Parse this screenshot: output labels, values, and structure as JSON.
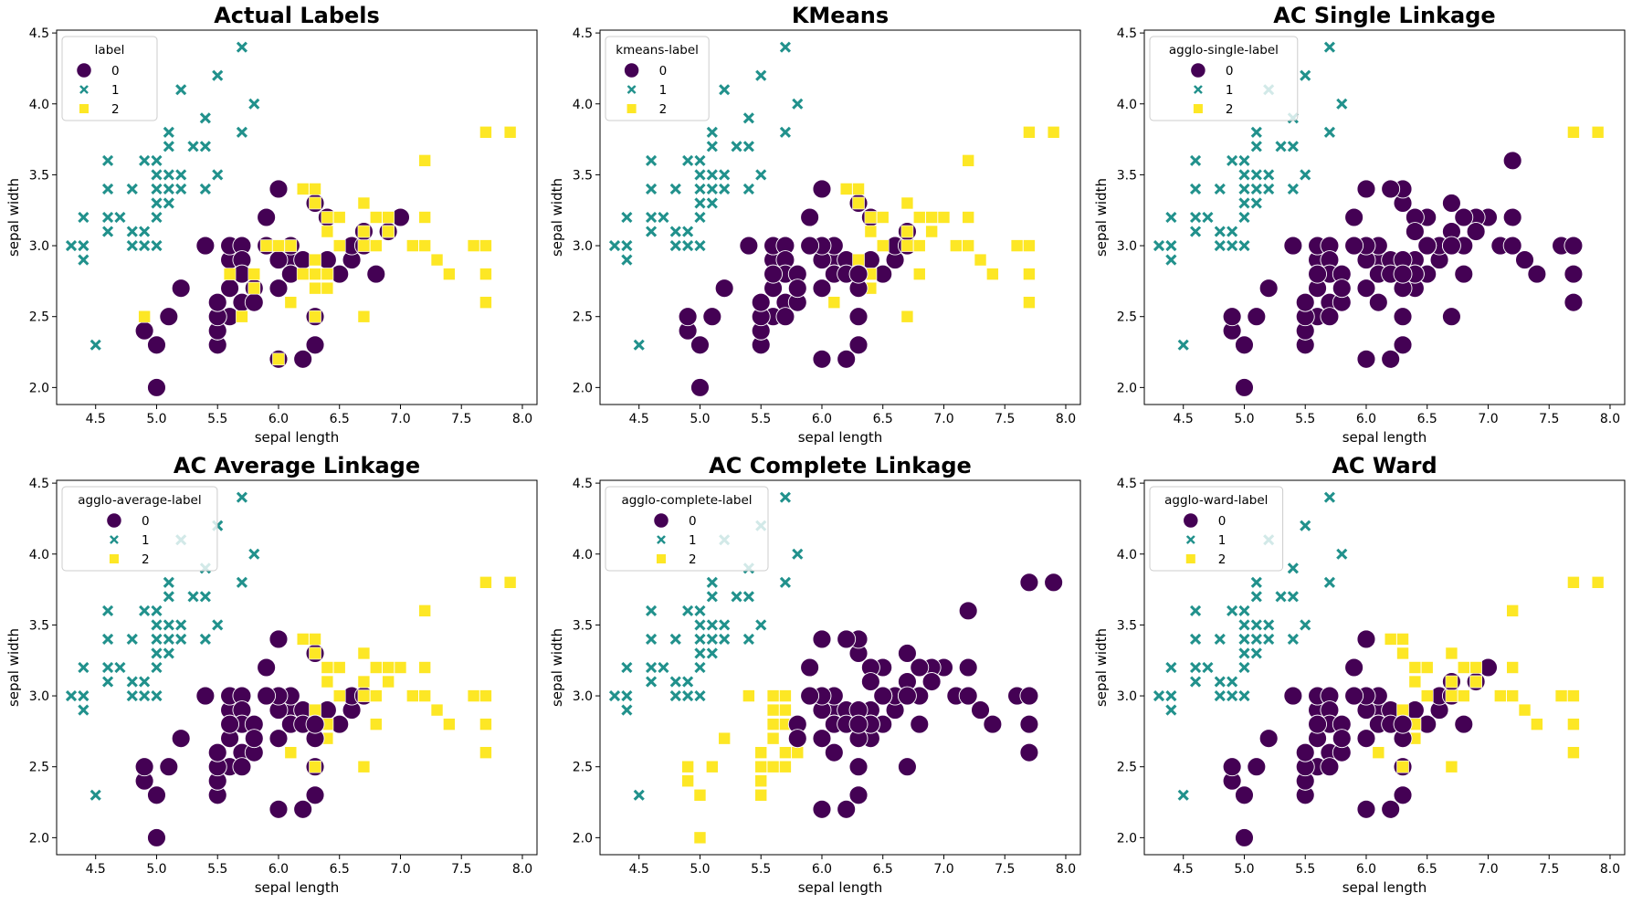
{
  "figure": {
    "layout": "2x3 grid",
    "palette": {
      "0": "#440154",
      "1": "#21918c",
      "2": "#fde725"
    },
    "markers": {
      "0": "circle",
      "1": "x",
      "2": "square"
    }
  },
  "shared": {
    "xlabel": "sepal length",
    "ylabel": "sepal width",
    "xlim": [
      4.18,
      8.12
    ],
    "ylim": [
      1.88,
      4.52
    ],
    "xticks": [
      "4.5",
      "5.0",
      "5.5",
      "6.0",
      "6.5",
      "7.0",
      "7.5",
      "8.0"
    ],
    "yticks": [
      "2.0",
      "2.5",
      "3.0",
      "3.5",
      "4.0",
      "4.5"
    ],
    "classes": [
      "0",
      "1",
      "2"
    ],
    "points": [
      [
        5.1,
        3.5
      ],
      [
        4.9,
        3.0
      ],
      [
        4.7,
        3.2
      ],
      [
        4.6,
        3.1
      ],
      [
        5.0,
        3.6
      ],
      [
        5.4,
        3.9
      ],
      [
        4.6,
        3.4
      ],
      [
        5.0,
        3.4
      ],
      [
        4.4,
        2.9
      ],
      [
        4.9,
        3.1
      ],
      [
        5.4,
        3.7
      ],
      [
        4.8,
        3.4
      ],
      [
        4.8,
        3.0
      ],
      [
        4.3,
        3.0
      ],
      [
        5.8,
        4.0
      ],
      [
        5.7,
        4.4
      ],
      [
        5.4,
        3.9
      ],
      [
        5.1,
        3.5
      ],
      [
        5.7,
        3.8
      ],
      [
        5.1,
        3.8
      ],
      [
        5.4,
        3.4
      ],
      [
        5.1,
        3.7
      ],
      [
        4.6,
        3.6
      ],
      [
        5.1,
        3.3
      ],
      [
        4.8,
        3.4
      ],
      [
        5.0,
        3.0
      ],
      [
        5.0,
        3.4
      ],
      [
        5.2,
        3.5
      ],
      [
        5.2,
        3.4
      ],
      [
        4.7,
        3.2
      ],
      [
        4.8,
        3.1
      ],
      [
        5.4,
        3.4
      ],
      [
        5.2,
        4.1
      ],
      [
        5.5,
        4.2
      ],
      [
        4.9,
        3.1
      ],
      [
        5.0,
        3.2
      ],
      [
        5.5,
        3.5
      ],
      [
        4.9,
        3.6
      ],
      [
        4.4,
        3.0
      ],
      [
        5.1,
        3.4
      ],
      [
        5.0,
        3.5
      ],
      [
        4.5,
        2.3
      ],
      [
        4.4,
        3.2
      ],
      [
        5.0,
        3.5
      ],
      [
        5.1,
        3.8
      ],
      [
        4.8,
        3.0
      ],
      [
        5.1,
        3.8
      ],
      [
        4.6,
        3.2
      ],
      [
        5.3,
        3.7
      ],
      [
        5.0,
        3.3
      ],
      [
        7.0,
        3.2
      ],
      [
        6.4,
        3.2
      ],
      [
        6.9,
        3.1
      ],
      [
        5.5,
        2.3
      ],
      [
        6.5,
        2.8
      ],
      [
        5.7,
        2.8
      ],
      [
        6.3,
        3.3
      ],
      [
        4.9,
        2.4
      ],
      [
        6.6,
        2.9
      ],
      [
        5.2,
        2.7
      ],
      [
        5.0,
        2.0
      ],
      [
        5.9,
        3.0
      ],
      [
        6.0,
        2.2
      ],
      [
        6.1,
        2.9
      ],
      [
        5.6,
        2.9
      ],
      [
        6.7,
        3.1
      ],
      [
        5.6,
        3.0
      ],
      [
        5.8,
        2.7
      ],
      [
        6.2,
        2.2
      ],
      [
        5.6,
        2.5
      ],
      [
        5.9,
        3.2
      ],
      [
        6.1,
        2.8
      ],
      [
        6.3,
        2.5
      ],
      [
        6.1,
        2.8
      ],
      [
        6.4,
        2.9
      ],
      [
        6.6,
        3.0
      ],
      [
        6.8,
        2.8
      ],
      [
        6.7,
        3.0
      ],
      [
        6.0,
        2.9
      ],
      [
        5.7,
        2.6
      ],
      [
        5.5,
        2.4
      ],
      [
        5.5,
        2.4
      ],
      [
        5.8,
        2.7
      ],
      [
        6.0,
        2.7
      ],
      [
        5.4,
        3.0
      ],
      [
        6.0,
        3.4
      ],
      [
        6.7,
        3.1
      ],
      [
        6.3,
        2.3
      ],
      [
        5.6,
        3.0
      ],
      [
        5.5,
        2.5
      ],
      [
        5.5,
        2.6
      ],
      [
        6.1,
        3.0
      ],
      [
        5.8,
        2.6
      ],
      [
        5.0,
        2.3
      ],
      [
        5.6,
        2.7
      ],
      [
        5.7,
        3.0
      ],
      [
        5.7,
        2.9
      ],
      [
        6.2,
        2.9
      ],
      [
        5.1,
        2.5
      ],
      [
        5.7,
        2.8
      ],
      [
        6.3,
        3.3
      ],
      [
        5.8,
        2.7
      ],
      [
        7.1,
        3.0
      ],
      [
        6.3,
        2.9
      ],
      [
        6.5,
        3.0
      ],
      [
        7.6,
        3.0
      ],
      [
        4.9,
        2.5
      ],
      [
        7.3,
        2.9
      ],
      [
        6.7,
        2.5
      ],
      [
        7.2,
        3.6
      ],
      [
        6.5,
        3.2
      ],
      [
        6.4,
        2.7
      ],
      [
        6.8,
        3.0
      ],
      [
        5.7,
        2.5
      ],
      [
        5.8,
        2.8
      ],
      [
        6.4,
        3.2
      ],
      [
        6.5,
        3.0
      ],
      [
        7.7,
        3.8
      ],
      [
        7.7,
        2.6
      ],
      [
        6.0,
        2.2
      ],
      [
        6.9,
        3.2
      ],
      [
        5.6,
        2.8
      ],
      [
        7.7,
        2.8
      ],
      [
        6.3,
        2.7
      ],
      [
        6.7,
        3.3
      ],
      [
        7.2,
        3.2
      ],
      [
        6.2,
        2.8
      ],
      [
        6.1,
        3.0
      ],
      [
        6.4,
        2.8
      ],
      [
        7.2,
        3.0
      ],
      [
        7.4,
        2.8
      ],
      [
        7.9,
        3.8
      ],
      [
        6.4,
        2.8
      ],
      [
        6.3,
        2.8
      ],
      [
        6.1,
        2.6
      ],
      [
        7.7,
        3.0
      ],
      [
        6.3,
        3.4
      ],
      [
        6.4,
        3.1
      ],
      [
        6.0,
        3.0
      ],
      [
        6.9,
        3.1
      ],
      [
        6.7,
        3.1
      ],
      [
        6.9,
        3.1
      ],
      [
        5.8,
        2.7
      ],
      [
        6.8,
        3.2
      ],
      [
        6.7,
        3.3
      ],
      [
        6.7,
        3.0
      ],
      [
        6.3,
        2.5
      ],
      [
        6.5,
        3.0
      ],
      [
        6.2,
        3.4
      ],
      [
        5.9,
        3.0
      ]
    ]
  },
  "chart_data": [
    {
      "type": "scatter",
      "title": "Actual Labels",
      "xlabel": "sepal length",
      "ylabel": "sepal width",
      "legend_title": "label",
      "legend_placement": "top-left",
      "labels": [
        1,
        1,
        1,
        1,
        1,
        1,
        1,
        1,
        1,
        1,
        1,
        1,
        1,
        1,
        1,
        1,
        1,
        1,
        1,
        1,
        1,
        1,
        1,
        1,
        1,
        1,
        1,
        1,
        1,
        1,
        1,
        1,
        1,
        1,
        1,
        1,
        1,
        1,
        1,
        1,
        1,
        1,
        1,
        1,
        1,
        1,
        1,
        1,
        1,
        1,
        0,
        0,
        0,
        0,
        0,
        0,
        0,
        0,
        0,
        0,
        0,
        0,
        0,
        0,
        0,
        0,
        0,
        0,
        0,
        0,
        0,
        0,
        0,
        0,
        0,
        0,
        0,
        0,
        0,
        0,
        0,
        0,
        0,
        0,
        0,
        0,
        0,
        0,
        0,
        0,
        0,
        0,
        0,
        0,
        0,
        0,
        0,
        0,
        0,
        0,
        2,
        2,
        2,
        2,
        2,
        2,
        2,
        2,
        2,
        2,
        2,
        2,
        2,
        2,
        2,
        2,
        2,
        2,
        2,
        2,
        2,
        2,
        2,
        2,
        2,
        2,
        2,
        2,
        2,
        2,
        2,
        2,
        2,
        2,
        2,
        2,
        2,
        2,
        2,
        2,
        2,
        2,
        2,
        2,
        2,
        2,
        2,
        2,
        2,
        2
      ]
    },
    {
      "type": "scatter",
      "title": "KMeans",
      "xlabel": "sepal length",
      "ylabel": "sepal width",
      "legend_title": "kmeans-label",
      "legend_placement": "top-left",
      "labels": [
        1,
        1,
        1,
        1,
        1,
        1,
        1,
        1,
        1,
        1,
        1,
        1,
        1,
        1,
        1,
        1,
        1,
        1,
        1,
        1,
        1,
        1,
        1,
        1,
        1,
        1,
        1,
        1,
        1,
        1,
        1,
        1,
        1,
        1,
        1,
        1,
        1,
        1,
        1,
        1,
        1,
        1,
        1,
        1,
        1,
        1,
        1,
        1,
        1,
        1,
        2,
        0,
        2,
        0,
        0,
        0,
        0,
        0,
        0,
        0,
        0,
        0,
        0,
        0,
        0,
        0,
        0,
        0,
        0,
        0,
        0,
        0,
        0,
        0,
        0,
        0,
        2,
        0,
        0,
        0,
        0,
        0,
        0,
        0,
        0,
        0,
        0,
        0,
        0,
        0,
        0,
        0,
        0,
        0,
        0,
        0,
        0,
        0,
        0,
        0,
        2,
        0,
        2,
        2,
        2,
        2,
        0,
        2,
        2,
        2,
        2,
        2,
        2,
        0,
        0,
        2,
        2,
        2,
        2,
        0,
        2,
        0,
        2,
        0,
        2,
        2,
        0,
        0,
        2,
        2,
        2,
        2,
        2,
        0,
        2,
        2,
        2,
        2,
        0,
        2,
        2,
        2,
        0,
        2,
        2,
        2,
        0,
        2,
        2,
        0
      ]
    },
    {
      "type": "scatter",
      "title": "AC Single Linkage",
      "xlabel": "sepal length",
      "ylabel": "sepal width",
      "legend_title": "agglo-single-label",
      "legend_placement": "top-left",
      "labels": [
        1,
        1,
        1,
        1,
        1,
        1,
        1,
        1,
        1,
        1,
        1,
        1,
        1,
        1,
        1,
        1,
        1,
        1,
        1,
        1,
        1,
        1,
        1,
        1,
        1,
        1,
        1,
        1,
        1,
        1,
        1,
        1,
        1,
        1,
        1,
        1,
        1,
        1,
        1,
        1,
        1,
        1,
        1,
        1,
        1,
        1,
        1,
        1,
        1,
        1,
        0,
        0,
        0,
        0,
        0,
        0,
        0,
        0,
        0,
        0,
        0,
        0,
        0,
        0,
        0,
        0,
        0,
        0,
        0,
        0,
        0,
        0,
        0,
        0,
        0,
        0,
        0,
        0,
        0,
        0,
        0,
        0,
        0,
        0,
        0,
        0,
        0,
        0,
        0,
        0,
        0,
        0,
        0,
        0,
        0,
        0,
        0,
        0,
        0,
        0,
        0,
        0,
        0,
        0,
        0,
        0,
        0,
        0,
        0,
        0,
        0,
        0,
        0,
        0,
        0,
        0,
        0,
        2,
        0,
        0,
        0,
        0,
        0,
        0,
        0,
        0,
        0,
        0,
        0,
        0,
        0,
        2,
        0,
        0,
        0,
        0,
        0,
        0,
        0,
        0,
        0,
        0,
        0,
        0,
        0,
        0,
        0,
        0,
        0,
        0
      ]
    },
    {
      "type": "scatter",
      "title": "AC Average Linkage",
      "xlabel": "sepal length",
      "ylabel": "sepal width",
      "legend_title": "agglo-average-label",
      "legend_placement": "top-left",
      "labels": [
        1,
        1,
        1,
        1,
        1,
        1,
        1,
        1,
        1,
        1,
        1,
        1,
        1,
        1,
        1,
        1,
        1,
        1,
        1,
        1,
        1,
        1,
        1,
        1,
        1,
        1,
        1,
        1,
        1,
        1,
        1,
        1,
        1,
        1,
        1,
        1,
        1,
        1,
        1,
        1,
        1,
        1,
        1,
        1,
        1,
        1,
        1,
        1,
        1,
        1,
        2,
        2,
        2,
        0,
        0,
        0,
        0,
        0,
        0,
        0,
        0,
        0,
        0,
        0,
        0,
        2,
        0,
        0,
        0,
        0,
        0,
        0,
        0,
        0,
        0,
        0,
        2,
        0,
        0,
        0,
        0,
        0,
        0,
        0,
        0,
        0,
        2,
        0,
        0,
        0,
        0,
        0,
        0,
        0,
        0,
        0,
        0,
        0,
        0,
        0,
        2,
        0,
        2,
        2,
        2,
        2,
        0,
        2,
        2,
        2,
        2,
        2,
        2,
        0,
        0,
        2,
        2,
        2,
        2,
        0,
        2,
        0,
        2,
        0,
        2,
        2,
        0,
        0,
        2,
        2,
        2,
        2,
        2,
        0,
        2,
        2,
        2,
        2,
        0,
        2,
        2,
        2,
        0,
        2,
        2,
        2,
        2,
        2,
        2,
        0
      ]
    },
    {
      "type": "scatter",
      "title": "AC Complete Linkage",
      "xlabel": "sepal length",
      "ylabel": "sepal width",
      "legend_title": "agglo-complete-label",
      "legend_placement": "top-left",
      "labels": [
        1,
        1,
        1,
        1,
        1,
        1,
        1,
        1,
        1,
        1,
        1,
        1,
        1,
        1,
        1,
        1,
        1,
        1,
        1,
        1,
        1,
        1,
        1,
        1,
        1,
        1,
        1,
        1,
        1,
        1,
        1,
        1,
        1,
        1,
        1,
        1,
        1,
        1,
        1,
        1,
        1,
        1,
        1,
        1,
        1,
        1,
        1,
        1,
        1,
        1,
        0,
        0,
        0,
        2,
        0,
        2,
        0,
        2,
        0,
        2,
        2,
        0,
        0,
        0,
        2,
        0,
        2,
        2,
        0,
        2,
        0,
        0,
        0,
        0,
        0,
        0,
        0,
        0,
        0,
        2,
        2,
        2,
        2,
        0,
        2,
        0,
        0,
        0,
        2,
        2,
        2,
        0,
        2,
        2,
        2,
        2,
        2,
        0,
        2,
        2,
        0,
        0,
        0,
        0,
        0,
        0,
        2,
        0,
        0,
        0,
        0,
        0,
        0,
        2,
        0,
        0,
        0,
        0,
        0,
        0,
        0,
        2,
        0,
        0,
        0,
        0,
        0,
        0,
        0,
        0,
        0,
        0,
        0,
        0,
        0,
        0,
        0,
        0,
        0,
        0,
        0,
        0,
        0,
        0,
        0,
        0,
        0,
        0,
        0,
        0
      ]
    },
    {
      "type": "scatter",
      "title": "AC Ward",
      "xlabel": "sepal length",
      "ylabel": "sepal width",
      "legend_title": "agglo-ward-label",
      "legend_placement": "top-left",
      "labels": [
        1,
        1,
        1,
        1,
        1,
        1,
        1,
        1,
        1,
        1,
        1,
        1,
        1,
        1,
        1,
        1,
        1,
        1,
        1,
        1,
        1,
        1,
        1,
        1,
        1,
        1,
        1,
        1,
        1,
        1,
        1,
        1,
        1,
        1,
        1,
        1,
        1,
        1,
        1,
        1,
        1,
        1,
        1,
        1,
        1,
        1,
        1,
        1,
        1,
        1,
        0,
        2,
        0,
        0,
        0,
        0,
        2,
        0,
        0,
        0,
        0,
        0,
        0,
        0,
        0,
        0,
        0,
        0,
        0,
        0,
        0,
        0,
        0,
        0,
        0,
        0,
        0,
        0,
        0,
        0,
        0,
        0,
        0,
        0,
        0,
        0,
        0,
        0,
        0,
        0,
        0,
        0,
        0,
        0,
        0,
        0,
        0,
        0,
        0,
        0,
        2,
        0,
        2,
        2,
        2,
        2,
        0,
        2,
        2,
        2,
        2,
        2,
        2,
        0,
        0,
        2,
        2,
        2,
        2,
        0,
        2,
        0,
        2,
        0,
        2,
        2,
        0,
        0,
        2,
        2,
        2,
        2,
        2,
        0,
        2,
        2,
        2,
        2,
        0,
        2,
        2,
        2,
        0,
        2,
        2,
        2,
        2,
        2,
        2,
        0
      ]
    }
  ]
}
